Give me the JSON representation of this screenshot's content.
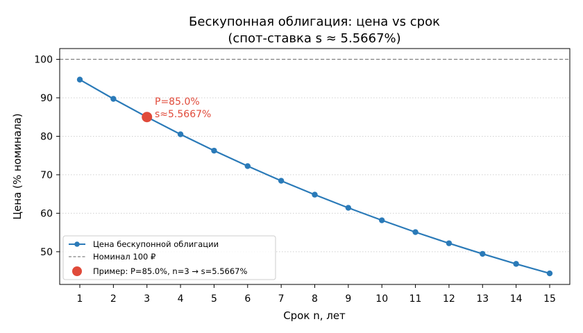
{
  "chart_data": {
    "type": "line",
    "title": "Бескупонная облигация: цена vs срок",
    "subtitle": "(спот-ставка s ≈ 5.5667%)",
    "xlabel": "Срок n, лет",
    "ylabel": "Цена (% номинала)",
    "xlim": [
      0.4,
      15.6
    ],
    "ylim": [
      41.5,
      102.8
    ],
    "xticks": [
      1,
      2,
      3,
      4,
      5,
      6,
      7,
      8,
      9,
      10,
      11,
      12,
      13,
      14,
      15
    ],
    "yticks": [
      50,
      60,
      70,
      80,
      90,
      100
    ],
    "grid": "horizontal-dotted",
    "legend_position": "lower-left",
    "series": [
      {
        "name": "Цена бескупонной облигации",
        "color": "#2a7ab8",
        "x": [
          1,
          2,
          3,
          4,
          5,
          6,
          7,
          8,
          9,
          10,
          11,
          12,
          13,
          14,
          15
        ],
        "values": [
          94.73,
          89.73,
          85.0,
          80.52,
          76.27,
          72.25,
          68.44,
          64.83,
          61.41,
          58.17,
          55.1,
          52.2,
          49.45,
          46.84,
          44.37
        ]
      }
    ],
    "reference_line": {
      "label": "Номинал 100 ₽",
      "y": 100,
      "color": "#808080"
    },
    "highlight_point": {
      "label": "Пример: P=85.0%, n=3 → s=5.5667%",
      "x": 3,
      "y": 85.0,
      "color": "#e04a3a",
      "annotation_lines": [
        "P=85.0%",
        "s≈5.5667%"
      ]
    }
  }
}
